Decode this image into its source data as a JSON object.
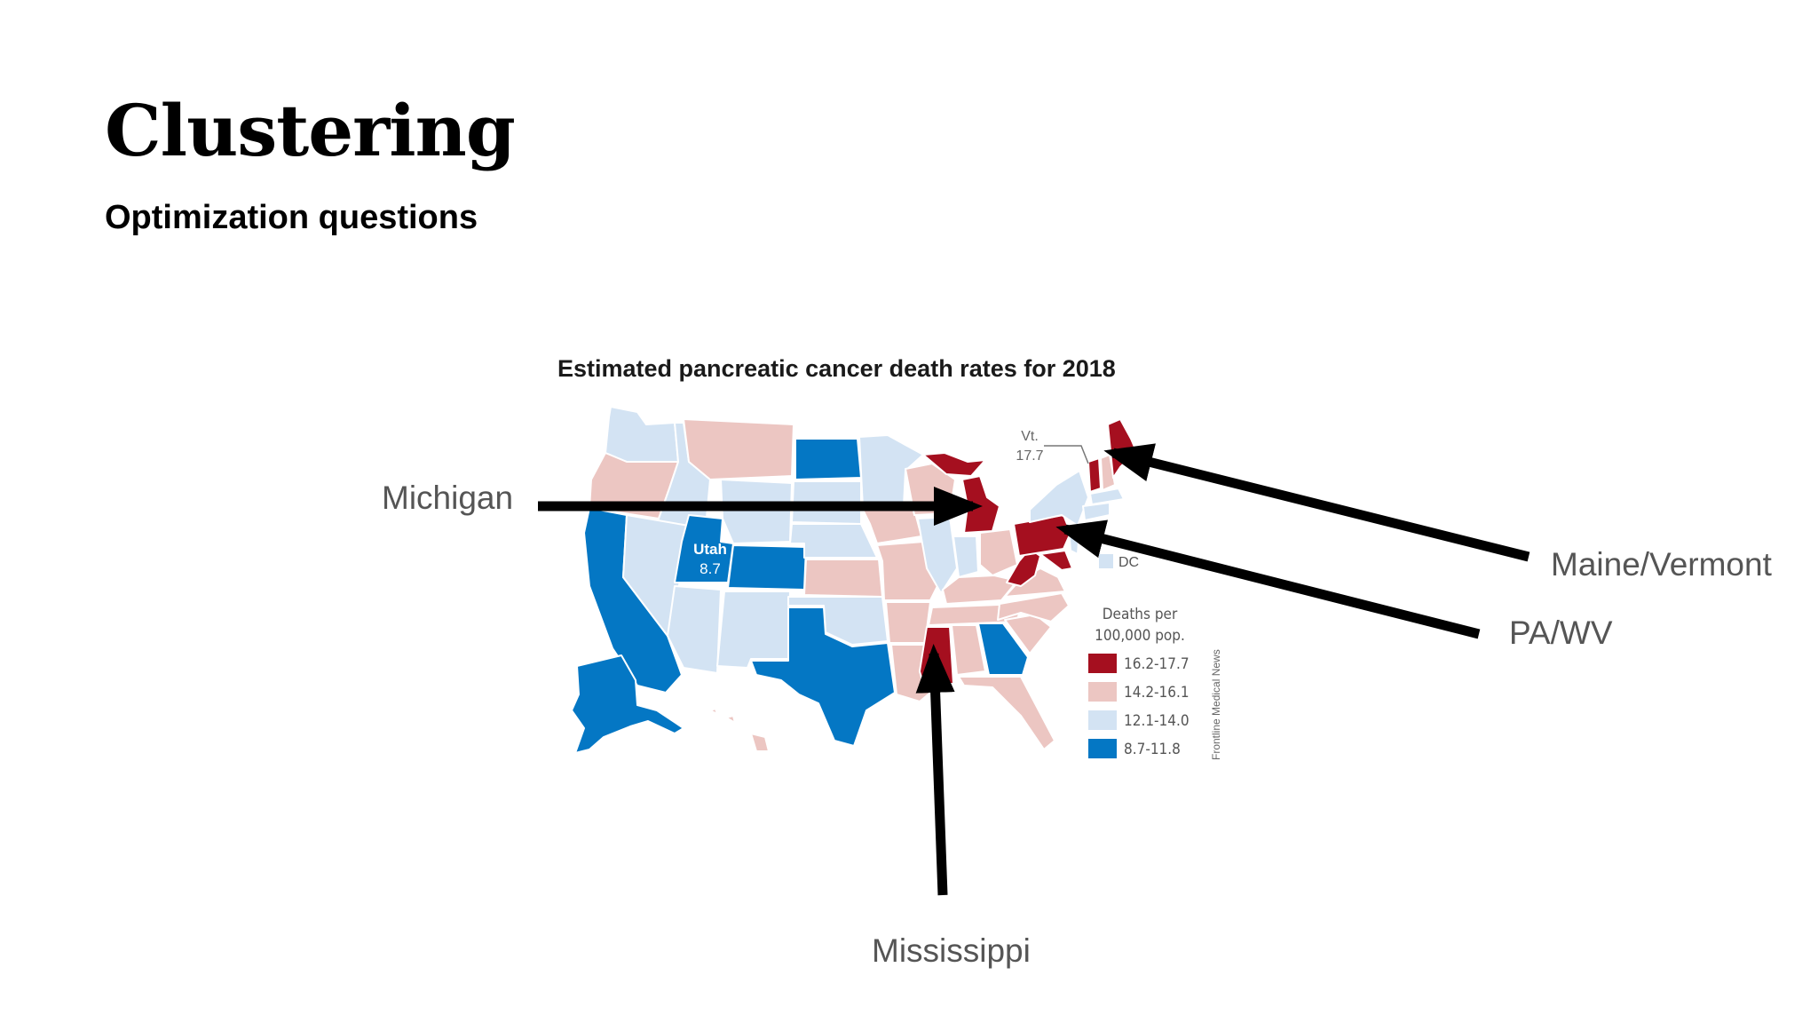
{
  "slide": {
    "title": "Clustering",
    "subtitle": "Optimization questions"
  },
  "map": {
    "title": "Estimated pancreatic cancer death rates for 2018",
    "labels": {
      "utah_name": "Utah",
      "utah_value": "8.7",
      "vt_name": "Vt.",
      "vt_value": "17.7",
      "dc": "DC"
    },
    "legend": {
      "title_line1": "Deaths per",
      "title_line2": "100,000 pop.",
      "items": [
        {
          "label": "16.2-17.7",
          "color": "#a50f1f"
        },
        {
          "label": "14.2-16.1",
          "color": "#ecc6c2"
        },
        {
          "label": "12.1-14.0",
          "color": "#d3e3f3"
        },
        {
          "label": "8.7-11.8",
          "color": "#0477c4"
        }
      ]
    },
    "source": "Frontline Medical News"
  },
  "callouts": {
    "michigan": "Michigan",
    "maine_vermont": "Maine/Vermont",
    "pa_wv": "PA/WV",
    "mississippi": "Mississippi"
  },
  "colors": {
    "high": "#a50f1f",
    "mid_high": "#ecc6c2",
    "mid_low": "#d3e3f3",
    "low": "#0477c4",
    "arrow": "#000000"
  }
}
